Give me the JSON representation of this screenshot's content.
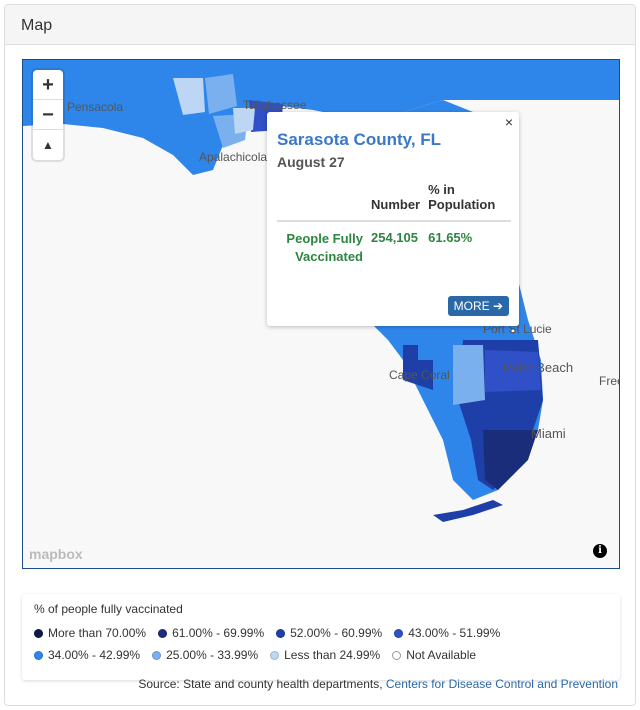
{
  "panel": {
    "title": "Map"
  },
  "map": {
    "cities": {
      "pensacola": "Pensacola",
      "tallahassee": "Tallahassee",
      "apalachicola": "Apalachicola",
      "port_st_lucie": "Port St Lucie",
      "cape_coral": "Cape Coral",
      "palm_beach": "Palm Beach",
      "miami": "Miami",
      "freeport": "Free"
    },
    "zoom_in": "+",
    "zoom_out": "−",
    "compass": "▲",
    "attribution_logo": "mapbox",
    "info_icon": "i"
  },
  "popup": {
    "title": "Sarasota County, FL",
    "date": "August 27",
    "close": "×",
    "col_number": "Number",
    "col_percent": "% in Population",
    "row_label": "People Fully Vaccinated",
    "number": "254,105",
    "percent": "61.65%",
    "more_label": "MORE ➔"
  },
  "legend": {
    "title": "% of people fully vaccinated",
    "items_row1": [
      {
        "label": "More than 70.00%",
        "color": "#0d1b4a"
      },
      {
        "label": "61.00% - 69.99%",
        "color": "#1a2d7a"
      },
      {
        "label": "52.00% - 60.99%",
        "color": "#1f3fa8"
      },
      {
        "label": "43.00% - 51.99%",
        "color": "#3050c8"
      }
    ],
    "items_row2": [
      {
        "label": "34.00% - 42.99%",
        "color": "#2f86ea"
      },
      {
        "label": "25.00% - 33.99%",
        "color": "#7ab0ee"
      },
      {
        "label": "Less than 24.99%",
        "color": "#bcd6f3"
      },
      {
        "label": "Not Available",
        "color": "#ffffff"
      }
    ]
  },
  "source": {
    "prefix": "Source: State and county health departments,",
    "link": "Centers for Disease Control and Prevention"
  }
}
